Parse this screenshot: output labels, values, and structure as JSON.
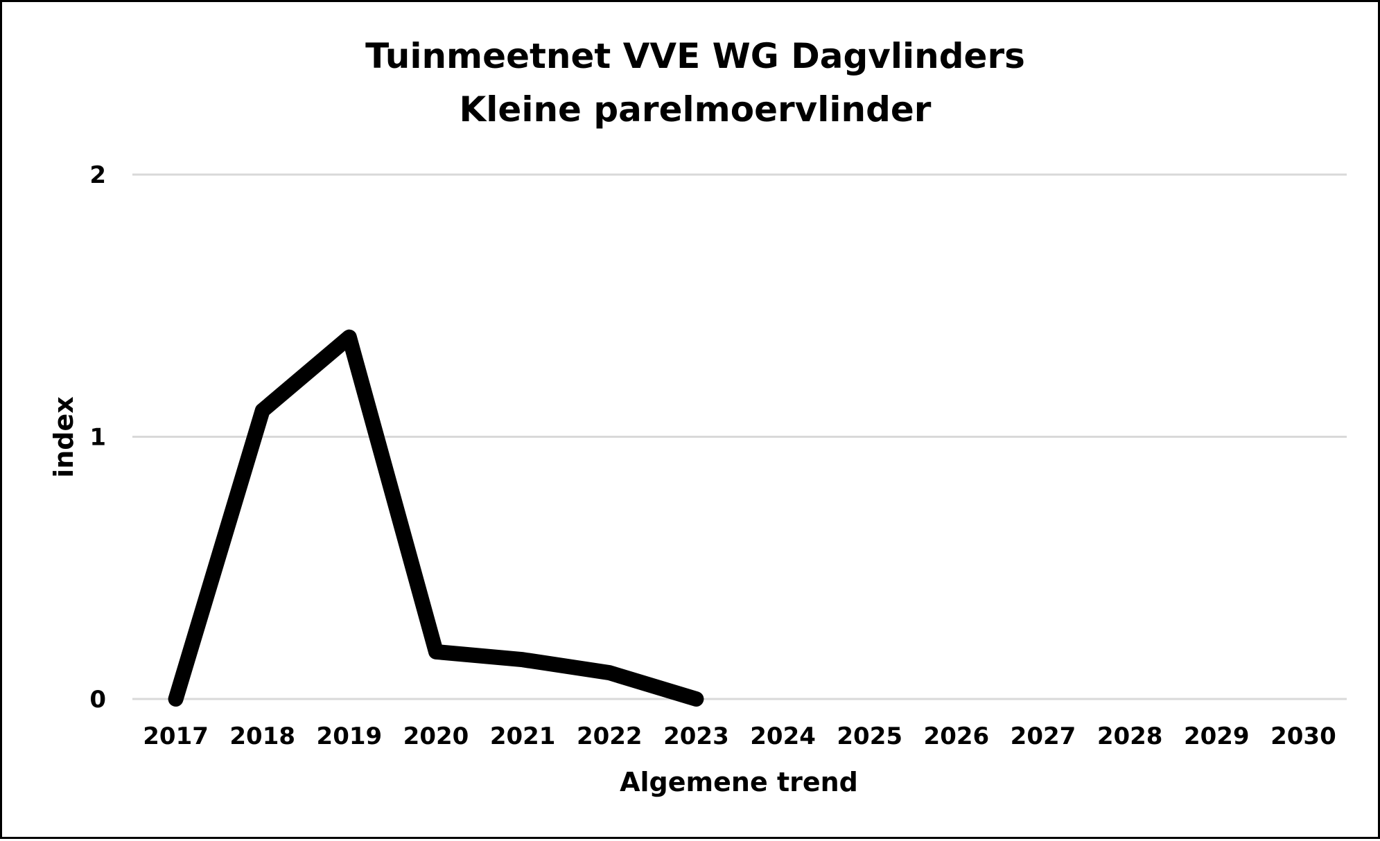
{
  "chart_data": {
    "type": "line",
    "title": "Tuinmeetnet VVE WG Dagvlinders",
    "subtitle": "Kleine parelmoervlinder",
    "xlabel": "Algemene trend",
    "ylabel": "index",
    "categories": [
      "2017",
      "2018",
      "2019",
      "2020",
      "2021",
      "2022",
      "2023",
      "2024",
      "2025",
      "2026",
      "2027",
      "2028",
      "2029",
      "2030"
    ],
    "series": [
      {
        "values": [
          0,
          1.1,
          1.38,
          0.18,
          0.15,
          0.1,
          0.0,
          null,
          null,
          null,
          null,
          null,
          null,
          null
        ]
      }
    ],
    "ylim": [
      0,
      2
    ],
    "yticks": [
      0,
      1,
      2
    ],
    "grid": true,
    "legend": "none",
    "colors": {
      "line": "#000000",
      "grid": "#d9d9d9",
      "border": "#000000",
      "background": "#ffffff"
    }
  }
}
